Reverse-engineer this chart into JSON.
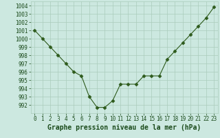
{
  "x": [
    0,
    1,
    2,
    3,
    4,
    5,
    6,
    7,
    8,
    9,
    10,
    11,
    12,
    13,
    14,
    15,
    16,
    17,
    18,
    19,
    20,
    21,
    22,
    23
  ],
  "y": [
    1001,
    1000,
    999,
    998,
    997,
    996,
    995.5,
    993,
    991.7,
    991.7,
    992.5,
    994.5,
    994.5,
    994.5,
    995.5,
    995.5,
    995.5,
    997.5,
    998.5,
    999.5,
    1000.5,
    1001.5,
    1002.5,
    1003.8
  ],
  "line_color": "#2d5a1b",
  "marker": "D",
  "marker_size": 2.5,
  "bg_color": "#cce8e0",
  "grid_color": "#aaccbb",
  "xlabel": "Graphe pression niveau de la mer (hPa)",
  "xlabel_fontsize": 7,
  "xlabel_color": "#1a4a1a",
  "tick_color": "#1a4a1a",
  "tick_fontsize": 5.5,
  "ylim": [
    991.0,
    1004.5
  ],
  "xlim": [
    -0.5,
    23.5
  ],
  "yticks": [
    992,
    993,
    994,
    995,
    996,
    997,
    998,
    999,
    1000,
    1001,
    1002,
    1003,
    1004
  ],
  "xticks": [
    0,
    1,
    2,
    3,
    4,
    5,
    6,
    7,
    8,
    9,
    10,
    11,
    12,
    13,
    14,
    15,
    16,
    17,
    18,
    19,
    20,
    21,
    22,
    23
  ]
}
